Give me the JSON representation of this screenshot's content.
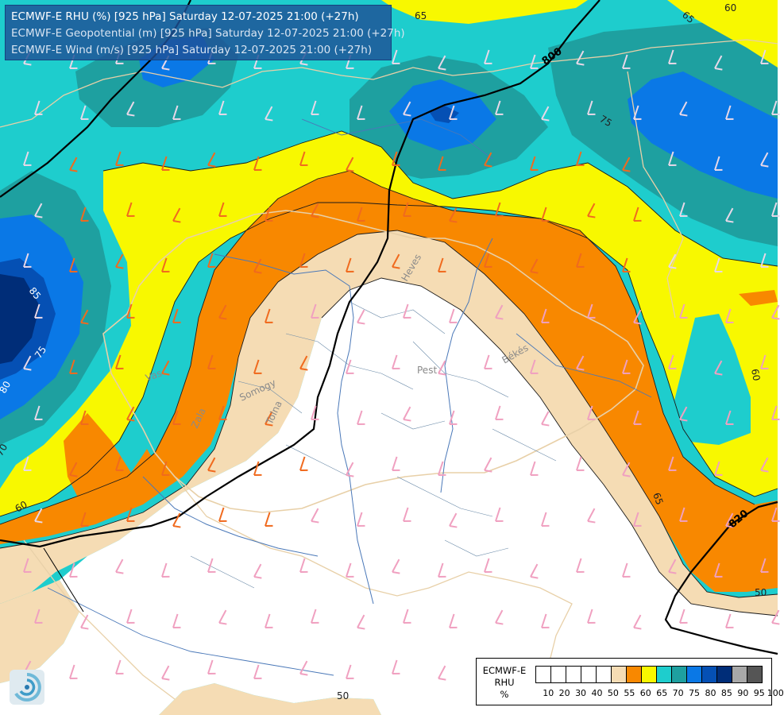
{
  "title_lines": [
    "ECMWF-E RHU (%) [925 hPa] Saturday 12-07-2025 21:00 (+27h)",
    "ECMWF-E Geopotential (m) [925 hPa] Saturday 12-07-2025 21:00 (+27h)",
    "ECMWF-E Wind (m/s) [925 hPa] Saturday 12-07-2025 21:00 (+27h)"
  ],
  "legend": {
    "title_lines": [
      "ECMWF-E",
      "RHU",
      "%"
    ],
    "labels": [
      "10",
      "20",
      "30",
      "40",
      "50",
      "55",
      "60",
      "65",
      "70",
      "75",
      "80",
      "85",
      "90",
      "95",
      "100"
    ],
    "colors": [
      "#ffffff",
      "#ffffff",
      "#ffffff",
      "#ffffff",
      "#ffffff",
      "#f5dcb4",
      "#f88800",
      "#f8f800",
      "#1ecdcd",
      "#1ea0a0",
      "#0a78e6",
      "#0550b4",
      "#002d78",
      "#a8a8a8",
      "#555555"
    ]
  },
  "colors": {
    "rh_lt55": "#ffffff",
    "rh_55": "#f5dcb4",
    "rh_60": "#f88800",
    "rh_65": "#f8f800",
    "rh_70": "#1ecdcd",
    "rh_75": "#1ea0a0",
    "rh_80": "#0a78e6",
    "rh_85": "#0550b4",
    "rh_90": "#002d78",
    "barb_dry": "#f0a0c0",
    "barb_mid": "#f06a1e",
    "barb_wet": "#e8d8e8"
  },
  "contour_labels": [
    {
      "id": "c65-top",
      "text": "65"
    },
    {
      "id": "c65-tr",
      "text": "65"
    },
    {
      "id": "c60-tr",
      "text": "60"
    },
    {
      "id": "c75-r",
      "text": "75"
    },
    {
      "id": "c60-r",
      "text": "60"
    },
    {
      "id": "c65-r",
      "text": "65"
    },
    {
      "id": "c50-r",
      "text": "50"
    },
    {
      "id": "c50-b",
      "text": "50"
    },
    {
      "id": "c85-l",
      "text": "85"
    },
    {
      "id": "c75-l",
      "text": "75"
    },
    {
      "id": "c80-l",
      "text": "80"
    },
    {
      "id": "c70-l",
      "text": "70"
    },
    {
      "id": "c60-l",
      "text": "60"
    }
  ],
  "geopotential_labels": [
    {
      "id": "z800",
      "text": "800"
    },
    {
      "id": "z820",
      "text": "820"
    }
  ],
  "place_labels": [
    {
      "id": "heves",
      "text": "Heves"
    },
    {
      "id": "pest",
      "text": "Pest"
    },
    {
      "id": "bekes",
      "text": "Békés"
    },
    {
      "id": "vas",
      "text": "Vas"
    },
    {
      "id": "zala",
      "text": "Zala"
    },
    {
      "id": "somogy",
      "text": "Somogy"
    },
    {
      "id": "tolna",
      "text": "Tolna"
    }
  ]
}
